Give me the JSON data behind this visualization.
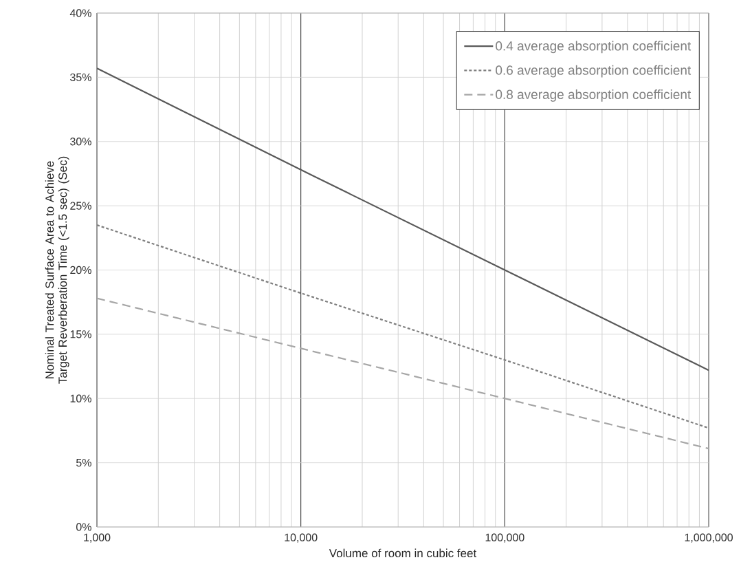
{
  "chart_data": {
    "type": "line",
    "xlabel": "Volume of room in cubic feet",
    "ylabel": "Nominal Treated Surface Area to Achieve Target Reverberation Time  (<1.5 sec)  (Sec)",
    "x": [
      1000,
      10000,
      100000,
      1000000
    ],
    "series": [
      {
        "name": "0.4 average absorption coefficient",
        "color": "#595959",
        "line_style": "solid",
        "values": [
          35.7,
          27.8,
          20.0,
          12.2
        ]
      },
      {
        "name": "0.6 average absorption coefficient",
        "color": "#7f7f7f",
        "line_style": "dashed",
        "values": [
          23.5,
          18.2,
          13.0,
          7.7
        ]
      },
      {
        "name": "0.8 average absorption coefficient",
        "color": "#a6a6a6",
        "line_style": "dashed",
        "values": [
          17.8,
          13.9,
          10.0,
          6.1
        ]
      }
    ],
    "log": "x",
    "grid": true,
    "legend": "top right",
    "marker": "none",
    "xlim": [
      1000,
      1000000
    ],
    "xticks": [
      {
        "value": 1000,
        "label": "1,000"
      },
      {
        "value": 10000,
        "label": "10,000"
      },
      {
        "value": 100000,
        "label": "100,000"
      },
      {
        "value": 1000000,
        "label": "1,000,000"
      }
    ],
    "ylim": [
      0,
      40
    ],
    "yticks": [
      {
        "value": 0,
        "label": "0%"
      },
      {
        "value": 5,
        "label": "5%"
      },
      {
        "value": 10,
        "label": "10%"
      },
      {
        "value": 15,
        "label": "15%"
      },
      {
        "value": 20,
        "label": "20%"
      },
      {
        "value": 25,
        "label": "25%"
      },
      {
        "value": 30,
        "label": "30%"
      },
      {
        "value": 35,
        "label": "35%"
      },
      {
        "value": 40,
        "label": "40%"
      }
    ]
  }
}
